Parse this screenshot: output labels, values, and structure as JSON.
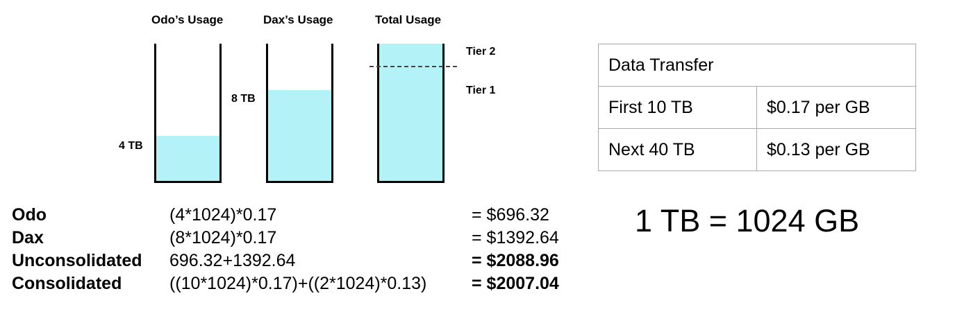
{
  "buckets": {
    "odo": {
      "title": "Odo’s Usage",
      "amount_label": "4 TB",
      "fill_fraction": 0.33
    },
    "dax": {
      "title": "Dax’s Usage",
      "amount_label": "8 TB",
      "fill_fraction": 0.66
    },
    "total": {
      "title": "Total Usage",
      "fill_fraction": 1.0
    },
    "tiers": {
      "tier2": "Tier 2",
      "tier1": "Tier 1"
    }
  },
  "pricing_table": {
    "header": "Data Transfer",
    "rows": [
      {
        "tier": "First 10 TB",
        "price": "$0.17 per GB"
      },
      {
        "tier": "Next 40 TB",
        "price": "$0.13 per GB"
      }
    ]
  },
  "calculations": [
    {
      "name": "Odo",
      "formula": "(4*1024)*0.17",
      "result": "= $696.32"
    },
    {
      "name": "Dax",
      "formula": "(8*1024)*0.17",
      "result": "= $1392.64"
    },
    {
      "name": "Unconsolidated",
      "formula": "696.32+1392.64",
      "result": "= $2088.96"
    },
    {
      "name": "Consolidated",
      "formula": "((10*1024)*0.17)+((2*1024)*0.13)",
      "result": "= $2007.04"
    }
  ],
  "conversion": "1 TB = 1024 GB",
  "colors": {
    "fill": "#b3f3f7"
  }
}
